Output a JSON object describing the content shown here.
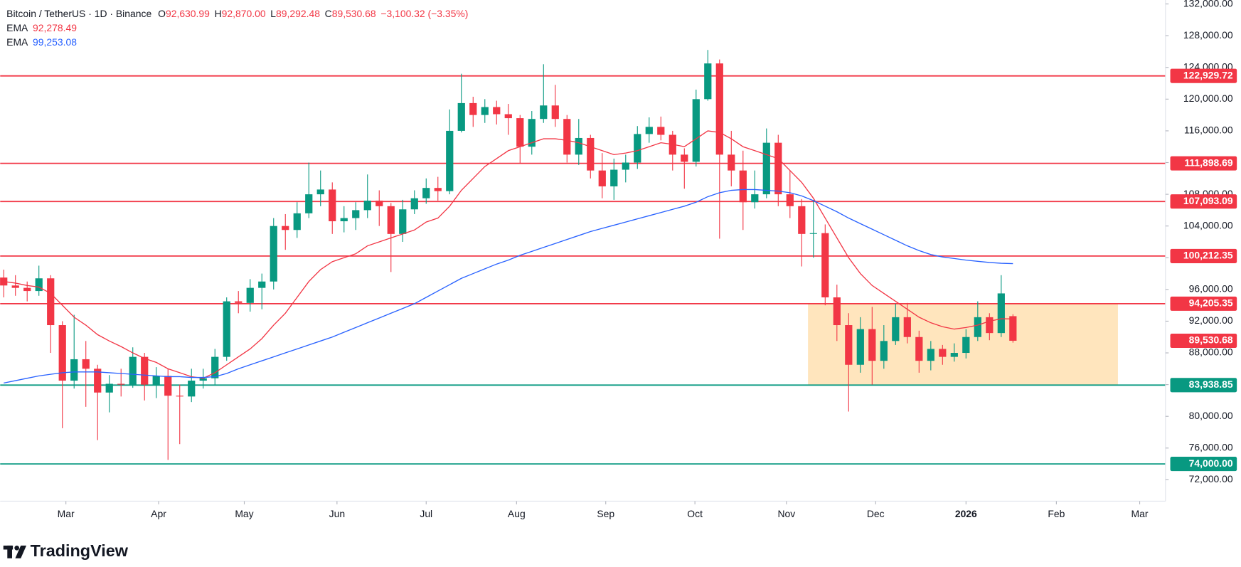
{
  "chart_data": {
    "type": "candlestick",
    "header": {
      "symbol": "Bitcoin / TetherUS · 1D · Binance",
      "ohlc": [
        {
          "label": "O",
          "value": "92,630.99"
        },
        {
          "label": "H",
          "value": "92,870.00"
        },
        {
          "label": "L",
          "value": "89,292.48"
        },
        {
          "label": "C",
          "value": "89,530.68"
        }
      ],
      "change": "−3,100.32 (−3.35%)"
    },
    "up_color": "#089981",
    "down_color": "#f23645",
    "candles": {
      "open": [
        97500,
        96500,
        96200,
        95800,
        97400,
        91500,
        84500,
        87200,
        86000,
        83000,
        84100,
        84000,
        87500,
        84000,
        85100,
        82600,
        82500,
        84500,
        84800,
        87500,
        94500,
        94300,
        96200,
        97000,
        104000,
        103500,
        105600,
        108000,
        108600,
        104600,
        105000,
        106000,
        107200,
        106500,
        103000,
        106100,
        107500,
        108800,
        108400,
        116000,
        119500,
        118000,
        119000,
        118100,
        117600,
        114000,
        117500,
        119200,
        117500,
        113000,
        115100,
        111000,
        109000,
        111100,
        112000,
        115600,
        116500,
        115500,
        113000,
        112100,
        120000,
        124500,
        113000,
        111000,
        107000,
        108000,
        114500,
        108000,
        106500,
        103000,
        103100,
        95000,
        91500,
        86500,
        91000,
        87000,
        89500,
        92500,
        90000,
        87000,
        88500,
        87500,
        88000,
        90000,
        92500,
        90500,
        92630.99
      ],
      "high": [
        98500,
        97800,
        97000,
        99000,
        97800,
        92000,
        92800,
        89500,
        86500,
        85200,
        86000,
        88700,
        88000,
        86200,
        86000,
        84000,
        86000,
        86000,
        88500,
        95000,
        95800,
        97300,
        98000,
        105000,
        105500,
        107000,
        112000,
        111000,
        109500,
        106500,
        107000,
        110500,
        108500,
        106900,
        107300,
        108500,
        110000,
        110200,
        118700,
        123200,
        120300,
        120000,
        119800,
        119400,
        118000,
        118500,
        124400,
        121800,
        118000,
        117500,
        115500,
        113200,
        112500,
        113000,
        116600,
        117700,
        117800,
        116000,
        113800,
        121200,
        126200,
        125000,
        116000,
        113500,
        111000,
        116300,
        115500,
        111000,
        107400,
        107300,
        104200,
        96600,
        93000,
        92500,
        93800,
        91500,
        94200,
        94300,
        90800,
        89500,
        89000,
        89200,
        91000,
        94500,
        93000,
        97800,
        92870
      ],
      "low": [
        95000,
        95200,
        94500,
        95200,
        88000,
        78500,
        83500,
        81200,
        77000,
        80500,
        82500,
        83600,
        82000,
        82300,
        74500,
        76500,
        81800,
        83500,
        84000,
        87000,
        93000,
        93200,
        93500,
        96000,
        101000,
        102500,
        105000,
        106500,
        103000,
        103200,
        103500,
        105000,
        104000,
        98200,
        102000,
        105500,
        106800,
        107200,
        108000,
        115800,
        116500,
        117000,
        116800,
        115500,
        111900,
        113000,
        117000,
        116500,
        112000,
        111700,
        110000,
        107500,
        107300,
        109500,
        111200,
        114500,
        114800,
        111000,
        108700,
        111500,
        119800,
        102400,
        109000,
        103500,
        106200,
        107500,
        106500,
        105000,
        98900,
        100000,
        94000,
        89500,
        80600,
        85500,
        84000,
        86000,
        89000,
        89200,
        85500,
        85800,
        86500,
        86900,
        87300,
        89500,
        89600,
        90000,
        89292.48
      ],
      "close": [
        96500,
        96200,
        95800,
        97400,
        91500,
        84500,
        87200,
        86000,
        83000,
        84100,
        84000,
        87500,
        84000,
        85100,
        82600,
        82500,
        84500,
        84800,
        87500,
        94500,
        94300,
        96200,
        97000,
        104000,
        103500,
        105600,
        108000,
        108600,
        104600,
        105000,
        106000,
        107200,
        106500,
        103000,
        106100,
        107500,
        108800,
        108400,
        116000,
        119500,
        118000,
        119000,
        118100,
        117600,
        114000,
        117500,
        119200,
        117500,
        113000,
        115100,
        111000,
        109000,
        111100,
        112000,
        115600,
        116500,
        115500,
        113000,
        112100,
        120000,
        124500,
        113000,
        111000,
        107000,
        108000,
        114500,
        108000,
        106500,
        103000,
        103100,
        95000,
        91500,
        86500,
        91000,
        87000,
        89500,
        92500,
        90000,
        87000,
        88500,
        87500,
        88000,
        90000,
        92500,
        90500,
        95500,
        89530.68
      ]
    },
    "series": [
      {
        "name": "EMA",
        "color": "#f23645",
        "last_label": "92,278.49",
        "values": [
          97000,
          96800,
          96500,
          96300,
          95500,
          94000,
          92500,
          91500,
          90300,
          89500,
          88800,
          88000,
          87300,
          86800,
          86000,
          85500,
          85000,
          84800,
          85500,
          86500,
          87500,
          88500,
          89800,
          91500,
          93000,
          95000,
          97000,
          98500,
          99500,
          100000,
          100500,
          101500,
          102000,
          102500,
          103000,
          103500,
          104500,
          105000,
          106500,
          108500,
          110000,
          111500,
          112500,
          113500,
          114000,
          114500,
          115000,
          115000,
          114800,
          114500,
          114000,
          113500,
          113000,
          113200,
          113500,
          114000,
          114500,
          114300,
          114000,
          115000,
          116000,
          115800,
          115000,
          114000,
          113500,
          113000,
          112500,
          111000,
          109500,
          107500,
          105000,
          102500,
          100000,
          98000,
          96500,
          95500,
          94500,
          93500,
          92500,
          91800,
          91300,
          91000,
          91200,
          91500,
          92000,
          92300,
          92278.49
        ]
      },
      {
        "name": "EMA",
        "color": "#2962ff",
        "last_label": "99,253.08",
        "values": [
          84200,
          84500,
          84800,
          85100,
          85300,
          85500,
          85600,
          85600,
          85600,
          85500,
          85400,
          85300,
          85200,
          85100,
          85000,
          85000,
          84900,
          84900,
          85000,
          85400,
          86000,
          86500,
          87000,
          87500,
          88000,
          88500,
          89000,
          89500,
          90000,
          90600,
          91200,
          91800,
          92400,
          93000,
          93600,
          94200,
          95000,
          95800,
          96600,
          97400,
          98000,
          98600,
          99200,
          99700,
          100300,
          100800,
          101300,
          101800,
          102300,
          102800,
          103300,
          103700,
          104100,
          104500,
          104900,
          105300,
          105700,
          106100,
          106500,
          107000,
          107700,
          108200,
          108500,
          108600,
          108600,
          108500,
          108400,
          108200,
          107800,
          107200,
          106500,
          105800,
          105000,
          104300,
          103600,
          102900,
          102200,
          101500,
          100900,
          100400,
          100100,
          99900,
          99700,
          99550,
          99400,
          99300,
          99253.08
        ]
      }
    ],
    "levels": [
      {
        "value": 122929.72,
        "label": "122,929.72",
        "color": "#f23645"
      },
      {
        "value": 111898.69,
        "label": "111,898.69",
        "color": "#f23645"
      },
      {
        "value": 107093.09,
        "label": "107,093.09",
        "color": "#f23645"
      },
      {
        "value": 100212.35,
        "label": "100,212.35",
        "color": "#f23645"
      },
      {
        "value": 94205.35,
        "label": "94,205.35",
        "color": "#f23645"
      },
      {
        "value": 83938.85,
        "label": "83,938.85",
        "color": "#089981"
      },
      {
        "value": 74000,
        "label": "74,000.00",
        "color": "#089981"
      }
    ],
    "zone_color": "#ffe0b2",
    "price_label": "89,530.68",
    "ylim": [
      69300,
      132500
    ],
    "xlim": [
      -0.3,
      99
    ],
    "grid": false,
    "yticks": [
      {
        "value": 72000,
        "label": "72,000.00"
      },
      {
        "value": 76000,
        "label": "76,000.00"
      },
      {
        "value": 80000,
        "label": "80,000.00"
      },
      {
        "value": 84000,
        "label": "84,000.00"
      },
      {
        "value": 88000,
        "label": "88,000.00"
      },
      {
        "value": 92000,
        "label": "92,000.00"
      },
      {
        "value": 96000,
        "label": "96,000.00"
      },
      {
        "value": 100000,
        "label": "100,000.00"
      },
      {
        "value": 104000,
        "label": "104,000.00"
      },
      {
        "value": 108000,
        "label": "108,000.00"
      },
      {
        "value": 112000,
        "label": "112,000.00"
      },
      {
        "value": 116000,
        "label": "116,000.00"
      },
      {
        "value": 120000,
        "label": "120,000.00"
      },
      {
        "value": 124000,
        "label": "124,000.00"
      },
      {
        "value": 128000,
        "label": "128,000.00"
      },
      {
        "value": 132000,
        "label": "132,000.00"
      }
    ],
    "xticks": [
      {
        "value": 5.3,
        "label": "Mar"
      },
      {
        "value": 13.2,
        "label": "Apr"
      },
      {
        "value": 20.5,
        "label": "May"
      },
      {
        "value": 28.4,
        "label": "Jun"
      },
      {
        "value": 36,
        "label": "Jul"
      },
      {
        "value": 43.7,
        "label": "Aug"
      },
      {
        "value": 51.3,
        "label": "Sep"
      },
      {
        "value": 58.9,
        "label": "Oct"
      },
      {
        "value": 66.7,
        "label": "Nov"
      },
      {
        "value": 74.3,
        "label": "Dec"
      },
      {
        "value": 82,
        "label": "2026"
      },
      {
        "value": 89.7,
        "label": "Feb"
      },
      {
        "value": 96.8,
        "label": "Mar"
      }
    ],
    "brand": "TradingView"
  }
}
